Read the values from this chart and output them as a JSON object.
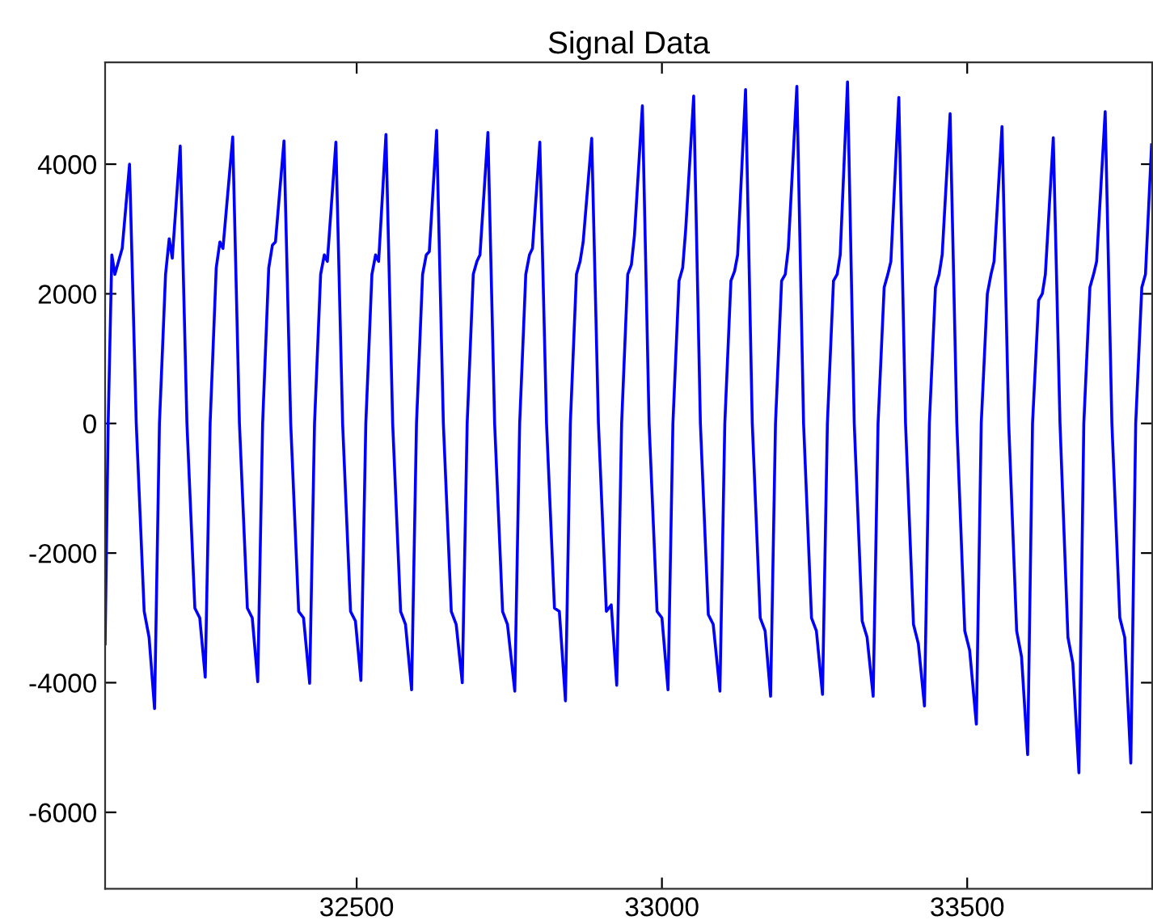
{
  "chart_data": {
    "type": "line",
    "title": "Signal Data",
    "series": [
      {
        "color": "#0000ff",
        "line_style": "solid",
        "x": [
          32088,
          32093,
          32099,
          32104,
          32116,
          32128,
          32139,
          32152,
          32160,
          32169,
          32177,
          32187,
          32193,
          32198,
          32211,
          32222,
          32235,
          32243,
          32252,
          32260,
          32270,
          32276,
          32281,
          32297,
          32308,
          32321,
          32329,
          32338,
          32346,
          32356,
          32362,
          32367,
          32381,
          32392,
          32405,
          32413,
          32423,
          32431,
          32441,
          32447,
          32452,
          32466,
          32477,
          32490,
          32498,
          32507,
          32515,
          32525,
          32531,
          32536,
          32548,
          32559,
          32572,
          32580,
          32590,
          32598,
          32608,
          32614,
          32619,
          32631,
          32642,
          32655,
          32663,
          32673,
          32681,
          32691,
          32697,
          32702,
          32715,
          32726,
          32739,
          32747,
          32759,
          32767,
          32777,
          32783,
          32788,
          32800,
          32811,
          32824,
          32832,
          32842,
          32850,
          32860,
          32866,
          32871,
          32885,
          32896,
          32909,
          32917,
          32926,
          32934,
          32944,
          32950,
          32955,
          32968,
          32979,
          32992,
          33000,
          33010,
          33018,
          33028,
          33034,
          33039,
          33052,
          33063,
          33076,
          33084,
          33095,
          33103,
          33113,
          33119,
          33124,
          33137,
          33148,
          33161,
          33169,
          33178,
          33186,
          33196,
          33202,
          33207,
          33221,
          33232,
          33245,
          33253,
          33263,
          33271,
          33281,
          33287,
          33292,
          33304,
          33315,
          33328,
          33336,
          33346,
          33354,
          33364,
          33370,
          33375,
          33388,
          33399,
          33412,
          33420,
          33430,
          33438,
          33448,
          33454,
          33459,
          33472,
          33483,
          33496,
          33504,
          33515,
          33523,
          33533,
          33539,
          33544,
          33557,
          33568,
          33581,
          33589,
          33599,
          33607,
          33617,
          33623,
          33628,
          33641,
          33652,
          33665,
          33673,
          33683,
          33691,
          33701,
          33707,
          33712,
          33726,
          33737,
          33750,
          33758,
          33768,
          33776,
          33786,
          33792,
          33802
        ],
        "values": [
          -3400,
          0,
          2600,
          2300,
          2700,
          4000,
          0,
          -2900,
          -3300,
          -4400,
          0,
          2300,
          2850,
          2550,
          4280,
          0,
          -2850,
          -3000,
          -3915,
          0,
          2400,
          2800,
          2700,
          4420,
          0,
          -2850,
          -3000,
          -3985,
          0,
          2400,
          2750,
          2800,
          4360,
          0,
          -2900,
          -3000,
          -4010,
          0,
          2300,
          2600,
          2500,
          4340,
          0,
          -2900,
          -3050,
          -3967,
          0,
          2300,
          2600,
          2500,
          4460,
          0,
          -2900,
          -3100,
          -4110,
          0,
          2300,
          2600,
          2650,
          4520,
          0,
          -2900,
          -3100,
          -4000,
          0,
          2300,
          2500,
          2600,
          4490,
          0,
          -2900,
          -3100,
          -4130,
          0,
          2300,
          2600,
          2700,
          4340,
          0,
          -2850,
          -2900,
          -4280,
          0,
          2300,
          2500,
          2800,
          4400,
          0,
          -2900,
          -2800,
          -4040,
          0,
          2300,
          2450,
          2900,
          4900,
          0,
          -2900,
          -3000,
          -4110,
          0,
          2200,
          2400,
          3000,
          5050,
          0,
          -2950,
          -3100,
          -4130,
          0,
          2200,
          2350,
          2600,
          5150,
          0,
          -3000,
          -3200,
          -4210,
          0,
          2200,
          2300,
          2700,
          5200,
          0,
          -3000,
          -3200,
          -4180,
          0,
          2200,
          2300,
          2600,
          5270,
          0,
          -3050,
          -3300,
          -4210,
          0,
          2100,
          2300,
          2500,
          5030,
          0,
          -3100,
          -3400,
          -4360,
          0,
          2100,
          2300,
          2600,
          4780,
          0,
          -3200,
          -3500,
          -4640,
          0,
          2000,
          2300,
          2500,
          4580,
          0,
          -3200,
          -3600,
          -5110,
          0,
          1900,
          2000,
          2300,
          4410,
          0,
          -3300,
          -3700,
          -5390,
          0,
          2100,
          2300,
          2500,
          4810,
          0,
          -3000,
          -3300,
          -5240,
          0,
          2100,
          2300,
          4300
        ]
      }
    ],
    "xlim": [
      32088,
      33803
    ],
    "xticks": [
      32500,
      33000,
      33500
    ],
    "ylim": [
      -7180,
      5570
    ],
    "yticks": [
      -6000,
      -4000,
      -2000,
      0,
      2000,
      4000
    ],
    "grid": false,
    "legend": false,
    "marker": "none"
  }
}
